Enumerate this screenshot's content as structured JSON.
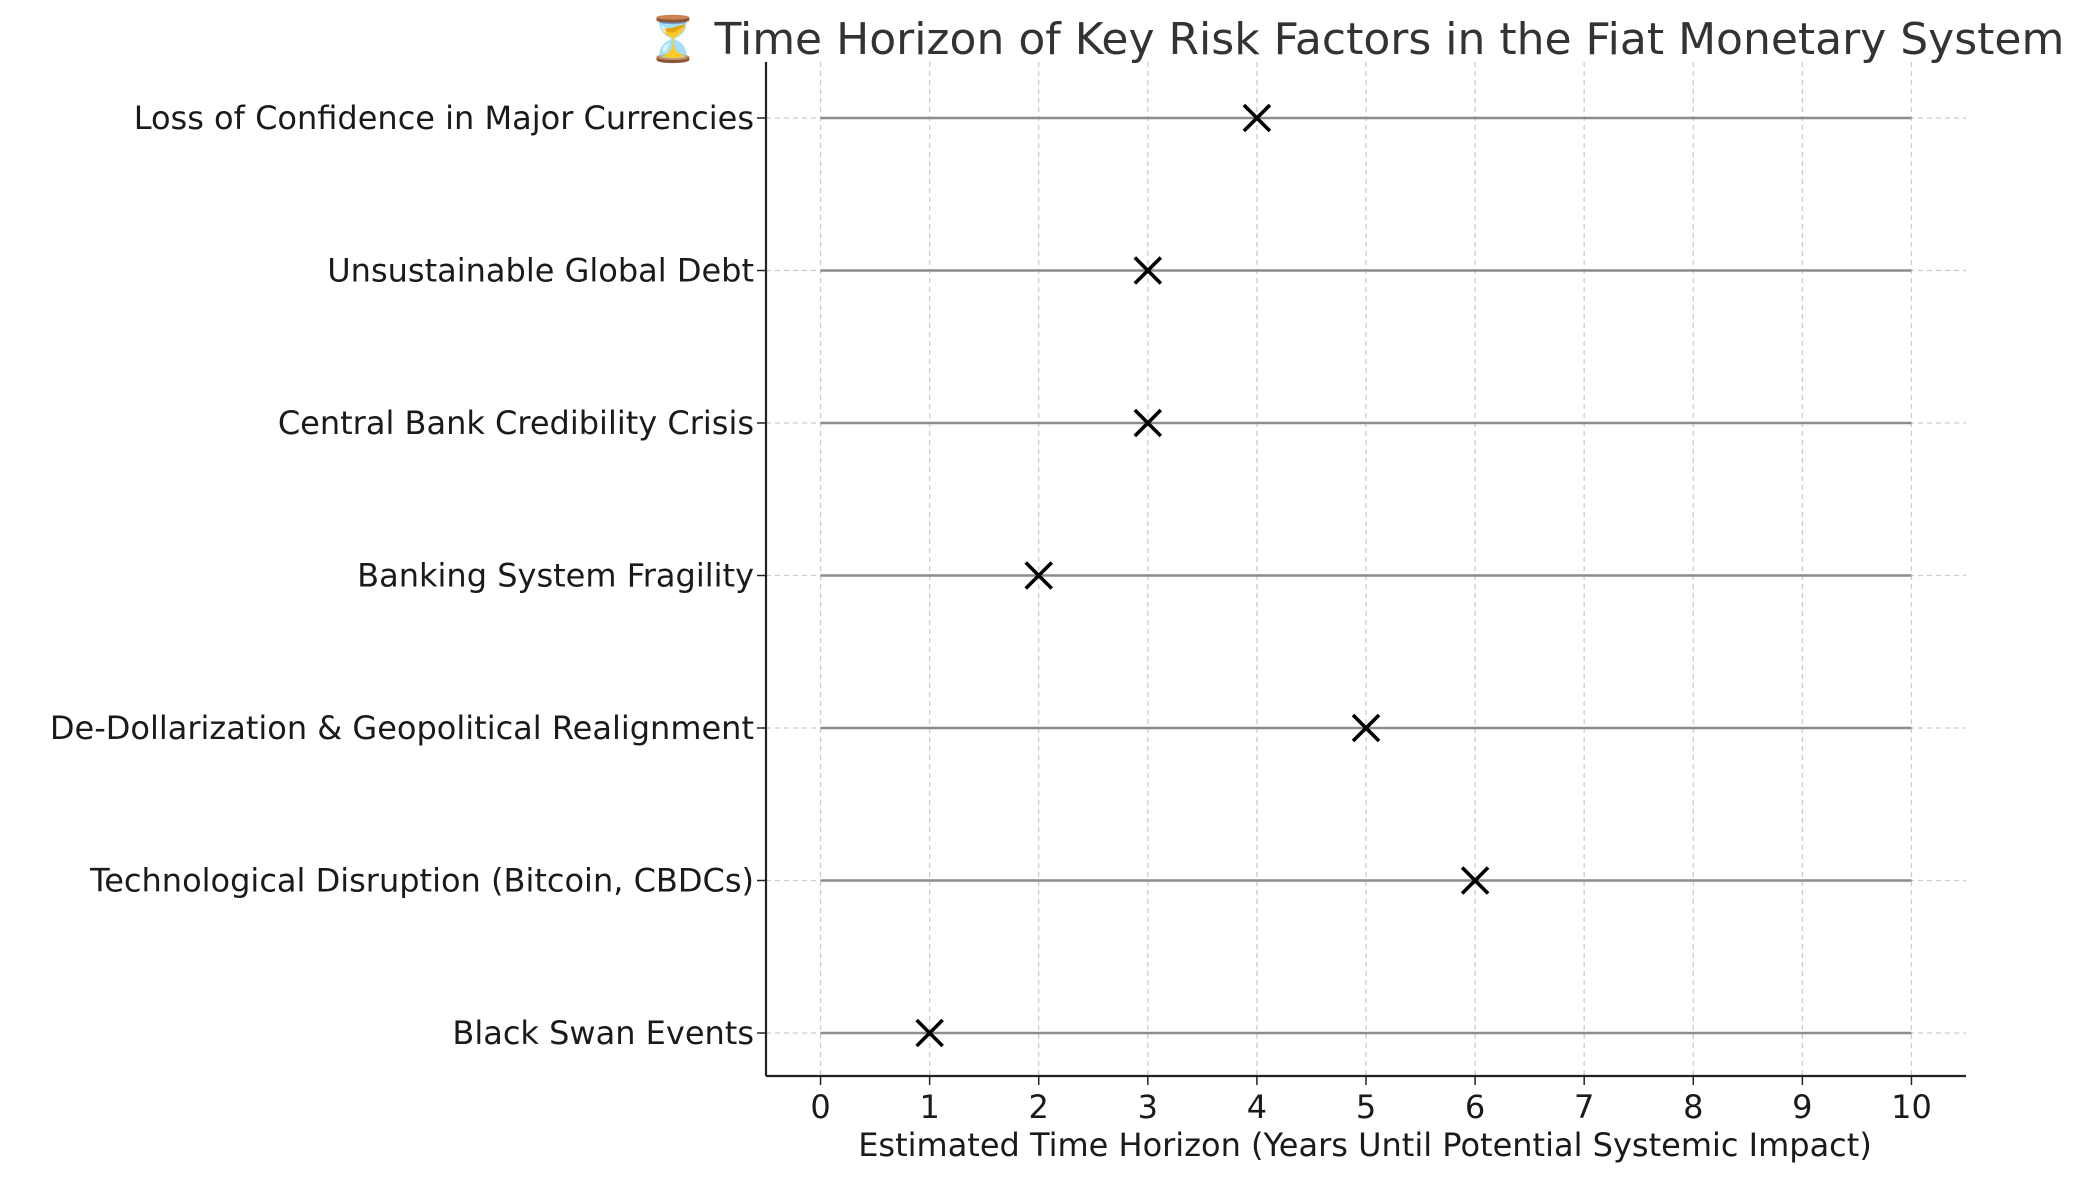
{
  "chart_data": {
    "type": "scatter",
    "title": "⏳ Time Horizon of Key Risk Factors in the Fiat Monetary System",
    "xlabel": "Estimated Time Horizon (Years Until Potential Systemic Impact)",
    "ylabel": "",
    "xlim": [
      -0.5,
      10.5
    ],
    "xticks": [
      0,
      1,
      2,
      3,
      4,
      5,
      6,
      7,
      8,
      9,
      10
    ],
    "range": [
      0,
      10
    ],
    "grid": true,
    "legend": "none",
    "marker": "x",
    "colors": {
      "marker": "#000000",
      "range_line": "#8c8c8c",
      "grid": "#cccccc"
    },
    "categories": [
      "Loss of Confidence in Major Currencies",
      "Unsustainable Global Debt",
      "Central Bank Credibility Crisis",
      "Banking System Fragility",
      "De-Dollarization & Geopolitical Realignment",
      "Technological Disruption (Bitcoin, CBDCs)",
      "Black Swan Events"
    ],
    "values": [
      4,
      3,
      3,
      2,
      5,
      6,
      1
    ]
  }
}
